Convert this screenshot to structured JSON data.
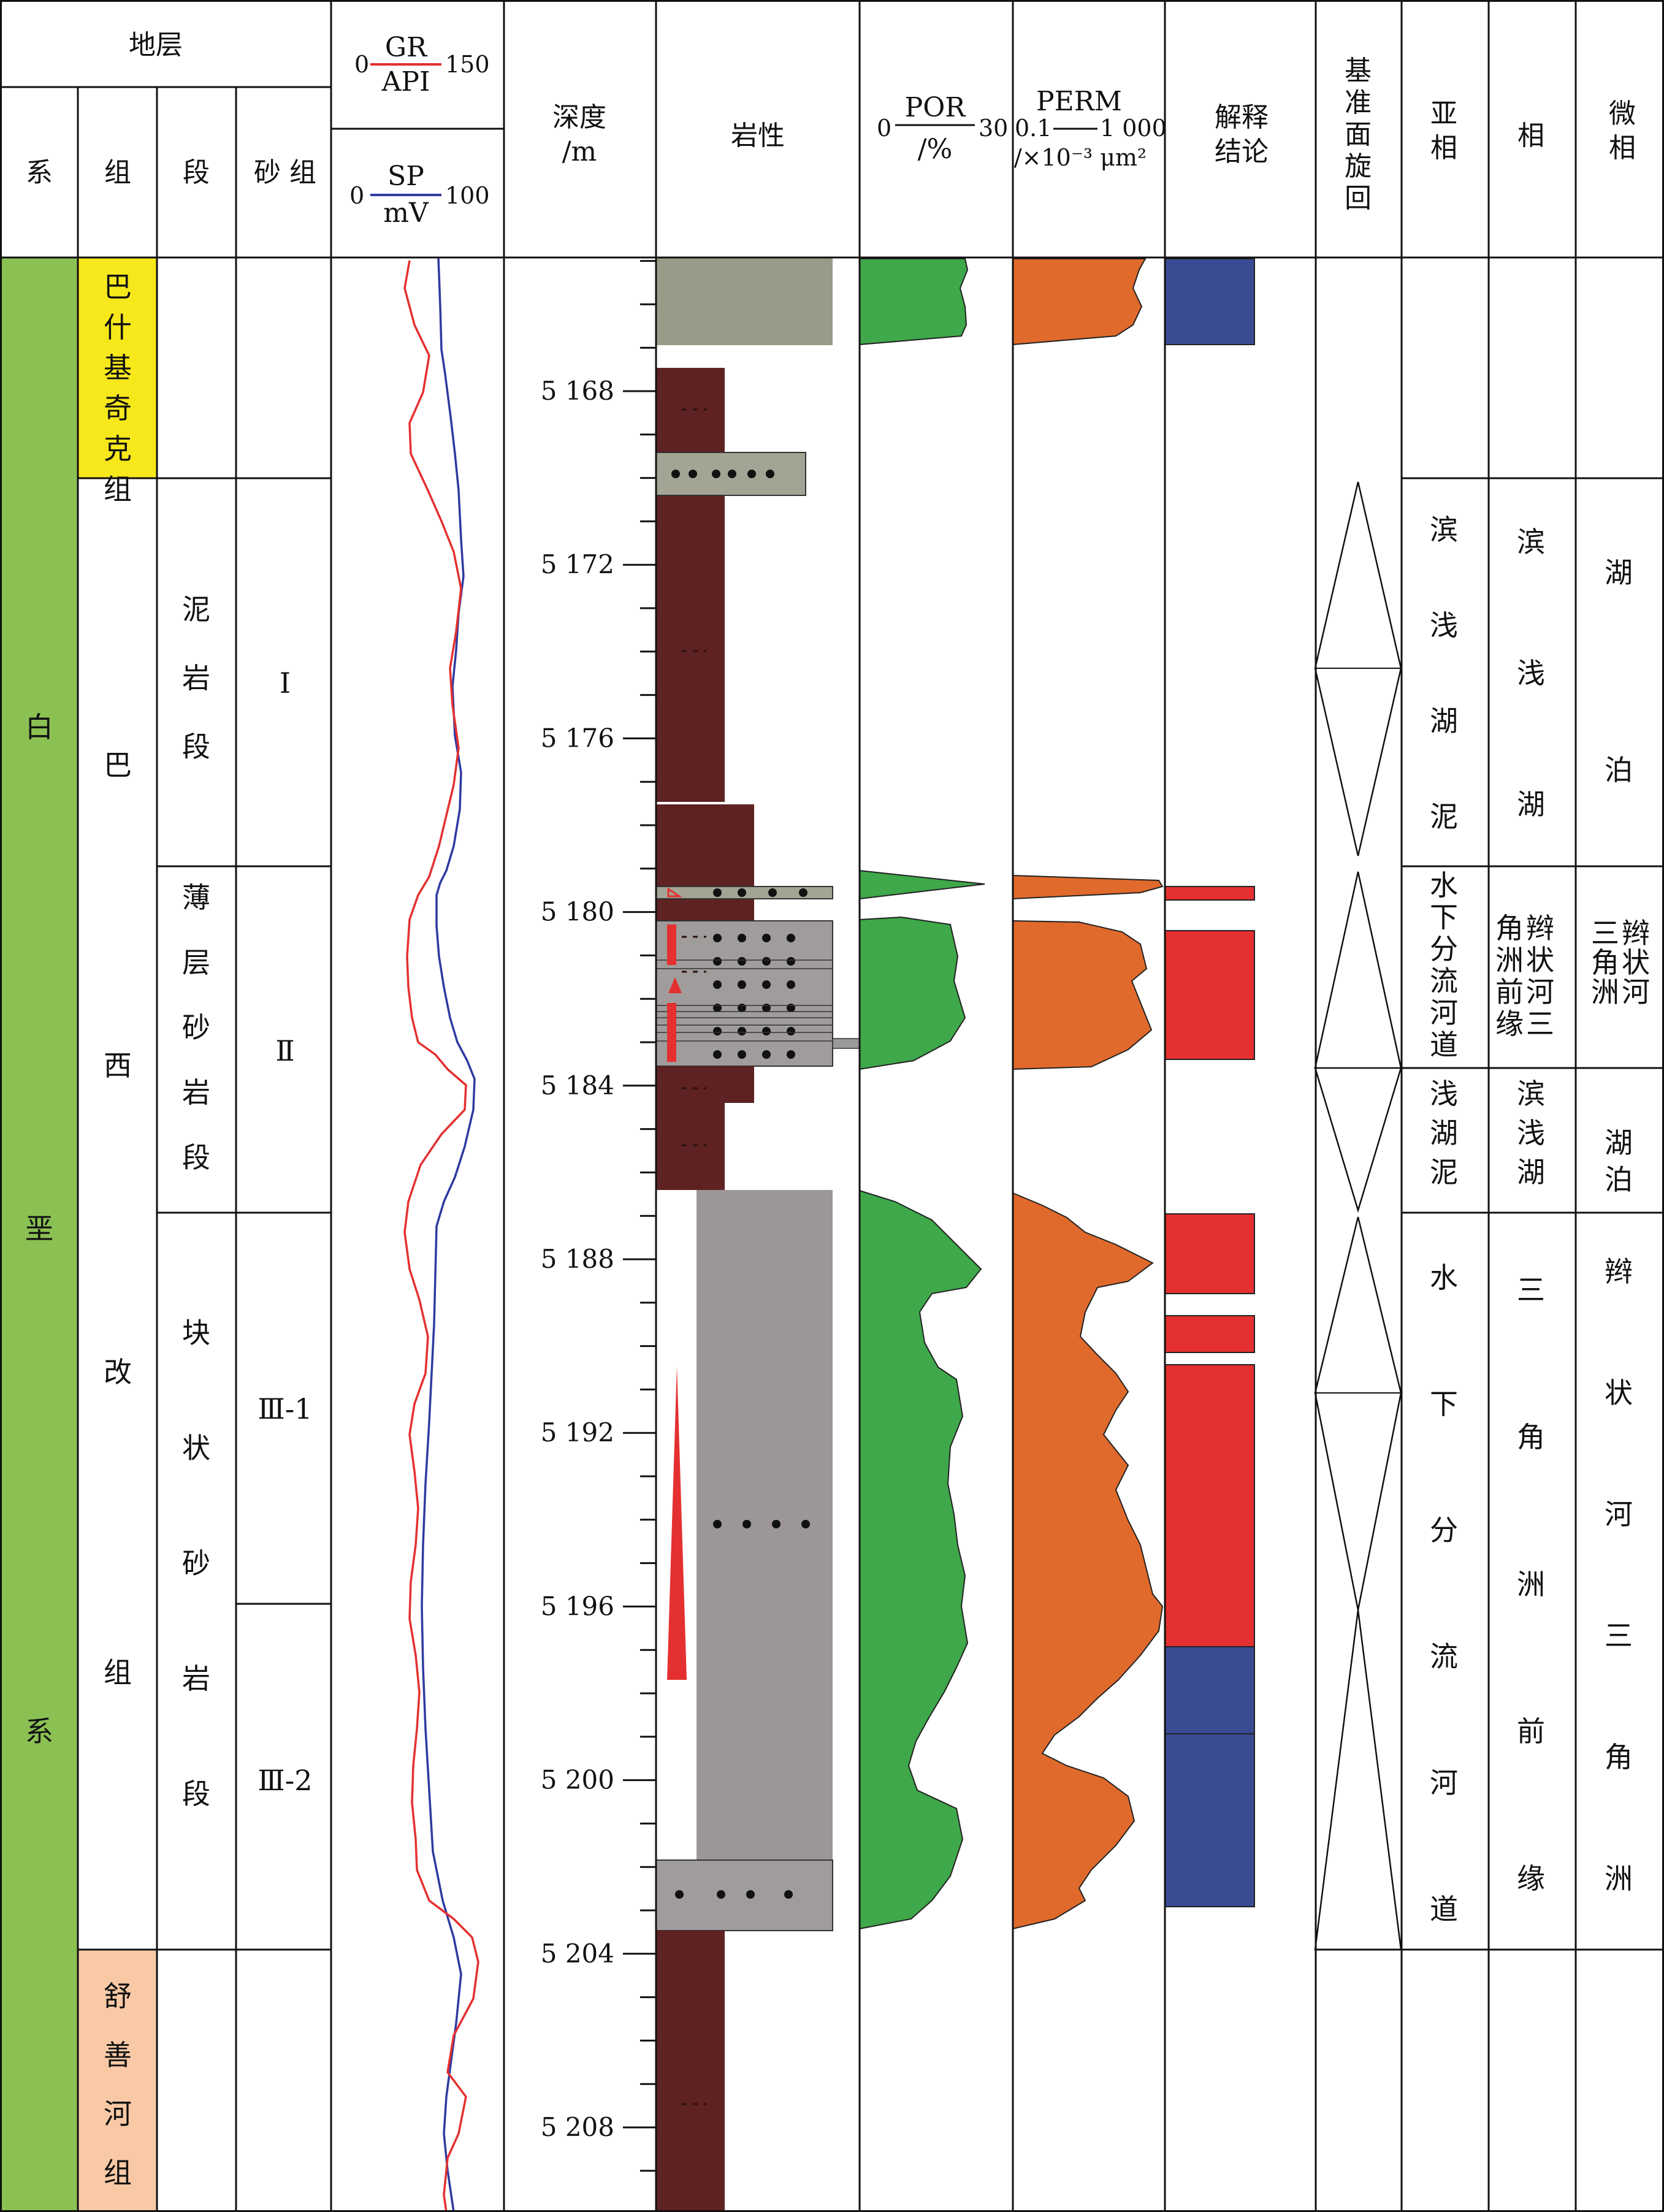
{
  "header": {
    "stratum": "地层",
    "xi": "系",
    "zu": "组",
    "duan": "段",
    "shazu": "砂 组",
    "gr_name": "GR",
    "gr_unit": "API",
    "gr_min": "0",
    "gr_max": "150",
    "sp_name": "SP",
    "sp_unit": "mV",
    "sp_min": "0",
    "sp_max": "100",
    "depth": "深度",
    "depth_unit": "/m",
    "lithology": "岩性",
    "por_name": "POR",
    "por_unit": "/%",
    "por_min": "0",
    "por_max": "30",
    "perm_name": "PERM",
    "perm_min": "0.1",
    "perm_max": "1 000",
    "perm_unit": "/×10⁻³ μm²",
    "interp_1": "解释",
    "interp_2": "结论",
    "cycle": "基准面旋回",
    "subfacies": "亚相",
    "facies": "相",
    "microfacies": "微相"
  },
  "columns": {
    "xi": "白垩系",
    "zu": [
      {
        "label": "巴什基奇克组",
        "color": "#f7e81c"
      },
      {
        "label": "巴西改组",
        "color": "#ffffff"
      },
      {
        "label": "舒善河组",
        "color": "#f9c9a6"
      }
    ],
    "duan": [
      "泥岩段",
      "薄层砂岩段",
      "块状砂岩段"
    ],
    "shazu": [
      "Ⅰ",
      "Ⅱ",
      "Ⅲ-1",
      "Ⅲ-2"
    ],
    "subfacies": [
      "滨浅湖泥",
      "水下分流河道",
      "浅湖泥",
      "水下分流河道"
    ],
    "facies": [
      "滨浅湖",
      "辫状河三角洲前缘",
      "滨浅湖",
      "三角洲前缘"
    ],
    "microfacies": [
      "湖泊",
      "辫状河三角洲",
      "湖泊",
      "辫状河三角洲"
    ]
  },
  "depth_ticks": [
    "5 168",
    "5 172",
    "5 176",
    "5 180",
    "5 184",
    "5 188",
    "5 192",
    "5 196",
    "5 200",
    "5 204",
    "5 208"
  ],
  "colors": {
    "xi_green": "#8bc153",
    "mudstone": "#5e2222",
    "sand_grey": "#9a9696",
    "silt_grey": "#9a9c8c",
    "por_green": "#3ea84a",
    "perm_orange": "#e06a2c",
    "interp_red": "#e43030",
    "interp_blue": "#3a4b93",
    "gr_red": "#e43030",
    "sp_blue": "#2e3aa0"
  }
}
